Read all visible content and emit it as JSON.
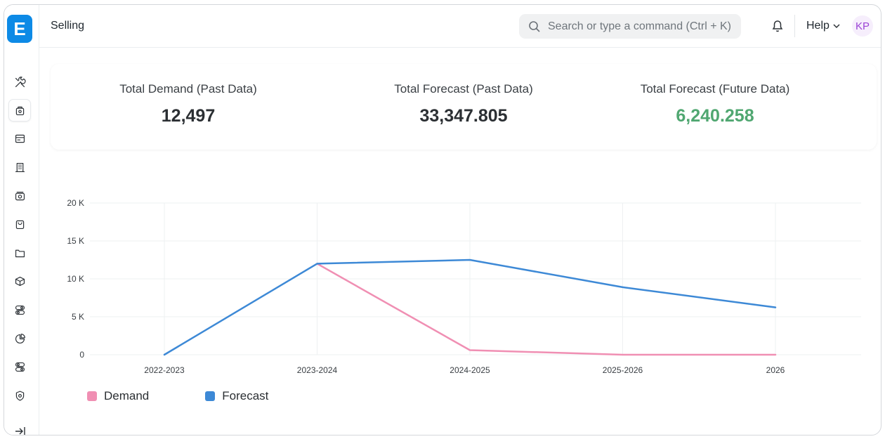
{
  "app": {
    "logo_letter": "E",
    "page_title": "Selling"
  },
  "topbar": {
    "search_placeholder": "Search or type a command (Ctrl + K)",
    "help_label": "Help",
    "avatar_initials": "KP"
  },
  "sidebar": {
    "items": [
      {
        "icon": "tools-icon"
      },
      {
        "icon": "selling-bag-icon",
        "active": true
      },
      {
        "icon": "card-icon"
      },
      {
        "icon": "building-icon"
      },
      {
        "icon": "money-icon"
      },
      {
        "icon": "shopping-bag-icon"
      },
      {
        "icon": "folder-icon"
      },
      {
        "icon": "package-icon"
      },
      {
        "icon": "toggles-icon"
      },
      {
        "icon": "pie-chart-icon"
      },
      {
        "icon": "toggles-icon-2"
      },
      {
        "icon": "shield-icon"
      }
    ]
  },
  "stats": [
    {
      "label": "Total Demand (Past Data)",
      "value": "12,497",
      "color": "#2b2f33"
    },
    {
      "label": "Total Forecast (Past Data)",
      "value": "33,347.805",
      "color": "#2b2f33"
    },
    {
      "label": "Total Forecast (Future Data)",
      "value": "6,240.258",
      "color": "#50a771"
    }
  ],
  "chart_data": {
    "type": "line",
    "categories": [
      "2022-2023",
      "2023-2024",
      "2024-2025",
      "2025-2026",
      "2026"
    ],
    "y_ticks": [
      "0",
      "5 K",
      "10 K",
      "15 K",
      "20 K"
    ],
    "ylim": [
      0,
      20000
    ],
    "grid": true,
    "legend_position": "bottom-left",
    "series": [
      {
        "name": "Demand",
        "color": "#f08fb3",
        "values": [
          null,
          12000,
          600,
          0,
          0
        ]
      },
      {
        "name": "Forecast",
        "color": "#3d89d6",
        "values": [
          0,
          12000,
          12500,
          8900,
          6240
        ]
      }
    ]
  }
}
